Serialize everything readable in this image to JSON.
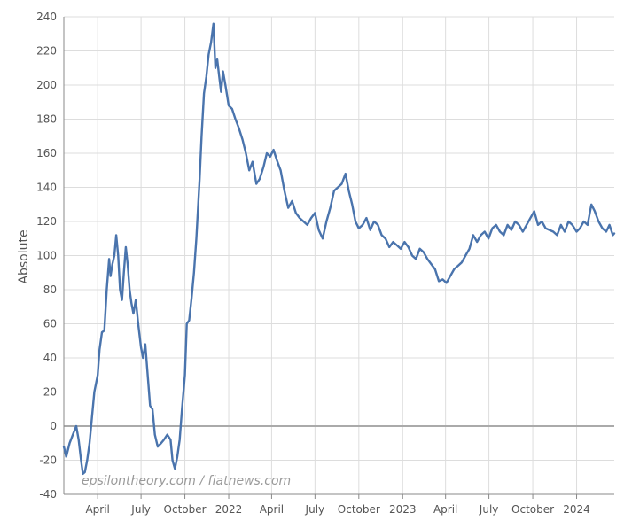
{
  "chart_data": {
    "type": "line",
    "ylabel": "Absolute",
    "ylim": [
      -40,
      240
    ],
    "yticks": [
      -40,
      -20,
      0,
      20,
      40,
      60,
      80,
      100,
      120,
      140,
      160,
      180,
      200,
      220,
      240
    ],
    "x_range_months": [
      "2021-01-20",
      "2024-03-20"
    ],
    "x_tick_labels": [
      "April",
      "July",
      "October",
      "2022",
      "April",
      "July",
      "October",
      "2023",
      "April",
      "July",
      "October",
      "2024"
    ],
    "x_tick_dates": [
      "2021-04-01",
      "2021-07-01",
      "2021-10-01",
      "2022-01-01",
      "2022-04-01",
      "2022-07-01",
      "2022-10-01",
      "2023-01-01",
      "2023-04-01",
      "2023-07-01",
      "2023-10-01",
      "2024-01-01"
    ],
    "grid": true,
    "zero_line": true,
    "series": [
      {
        "color": "#4a74ad",
        "points": [
          [
            "2021-01-20",
            -12
          ],
          [
            "2021-01-25",
            -18
          ],
          [
            "2021-02-01",
            -10
          ],
          [
            "2021-02-08",
            -5
          ],
          [
            "2021-02-15",
            0
          ],
          [
            "2021-02-20",
            -8
          ],
          [
            "2021-02-25",
            -20
          ],
          [
            "2021-03-01",
            -28
          ],
          [
            "2021-03-05",
            -27
          ],
          [
            "2021-03-10",
            -20
          ],
          [
            "2021-03-15",
            -10
          ],
          [
            "2021-03-20",
            5
          ],
          [
            "2021-03-25",
            20
          ],
          [
            "2021-04-01",
            30
          ],
          [
            "2021-04-05",
            45
          ],
          [
            "2021-04-10",
            55
          ],
          [
            "2021-04-15",
            56
          ],
          [
            "2021-04-20",
            80
          ],
          [
            "2021-04-25",
            98
          ],
          [
            "2021-04-28",
            88
          ],
          [
            "2021-05-02",
            95
          ],
          [
            "2021-05-06",
            100
          ],
          [
            "2021-05-10",
            112
          ],
          [
            "2021-05-14",
            100
          ],
          [
            "2021-05-18",
            80
          ],
          [
            "2021-05-22",
            74
          ],
          [
            "2021-05-26",
            90
          ],
          [
            "2021-05-30",
            105
          ],
          [
            "2021-06-03",
            95
          ],
          [
            "2021-06-07",
            80
          ],
          [
            "2021-06-11",
            72
          ],
          [
            "2021-06-15",
            66
          ],
          [
            "2021-06-20",
            74
          ],
          [
            "2021-06-25",
            60
          ],
          [
            "2021-07-01",
            46
          ],
          [
            "2021-07-05",
            40
          ],
          [
            "2021-07-10",
            48
          ],
          [
            "2021-07-15",
            30
          ],
          [
            "2021-07-20",
            12
          ],
          [
            "2021-07-25",
            10
          ],
          [
            "2021-07-30",
            -5
          ],
          [
            "2021-08-05",
            -12
          ],
          [
            "2021-08-12",
            -10
          ],
          [
            "2021-08-18",
            -8
          ],
          [
            "2021-08-25",
            -5
          ],
          [
            "2021-09-01",
            -8
          ],
          [
            "2021-09-05",
            -20
          ],
          [
            "2021-09-10",
            -25
          ],
          [
            "2021-09-15",
            -18
          ],
          [
            "2021-09-20",
            -8
          ],
          [
            "2021-09-25",
            10
          ],
          [
            "2021-10-01",
            30
          ],
          [
            "2021-10-05",
            60
          ],
          [
            "2021-10-10",
            62
          ],
          [
            "2021-10-15",
            75
          ],
          [
            "2021-10-20",
            90
          ],
          [
            "2021-10-25",
            110
          ],
          [
            "2021-11-01",
            145
          ],
          [
            "2021-11-05",
            170
          ],
          [
            "2021-11-10",
            195
          ],
          [
            "2021-11-15",
            205
          ],
          [
            "2021-11-20",
            218
          ],
          [
            "2021-11-25",
            225
          ],
          [
            "2021-11-30",
            236
          ],
          [
            "2021-12-04",
            210
          ],
          [
            "2021-12-08",
            215
          ],
          [
            "2021-12-12",
            205
          ],
          [
            "2021-12-16",
            196
          ],
          [
            "2021-12-20",
            208
          ],
          [
            "2021-12-25",
            200
          ],
          [
            "2022-01-01",
            188
          ],
          [
            "2022-01-08",
            186
          ],
          [
            "2022-01-15",
            180
          ],
          [
            "2022-01-22",
            175
          ],
          [
            "2022-01-30",
            168
          ],
          [
            "2022-02-06",
            160
          ],
          [
            "2022-02-13",
            150
          ],
          [
            "2022-02-20",
            155
          ],
          [
            "2022-02-28",
            142
          ],
          [
            "2022-03-07",
            145
          ],
          [
            "2022-03-15",
            152
          ],
          [
            "2022-03-22",
            160
          ],
          [
            "2022-03-29",
            158
          ],
          [
            "2022-04-05",
            162
          ],
          [
            "2022-04-12",
            156
          ],
          [
            "2022-04-20",
            150
          ],
          [
            "2022-04-28",
            138
          ],
          [
            "2022-05-06",
            128
          ],
          [
            "2022-05-14",
            132
          ],
          [
            "2022-05-22",
            125
          ],
          [
            "2022-05-30",
            122
          ],
          [
            "2022-06-07",
            120
          ],
          [
            "2022-06-15",
            118
          ],
          [
            "2022-06-23",
            122
          ],
          [
            "2022-07-01",
            125
          ],
          [
            "2022-07-09",
            115
          ],
          [
            "2022-07-17",
            110
          ],
          [
            "2022-07-25",
            120
          ],
          [
            "2022-08-02",
            128
          ],
          [
            "2022-08-10",
            138
          ],
          [
            "2022-08-18",
            140
          ],
          [
            "2022-08-26",
            142
          ],
          [
            "2022-09-03",
            148
          ],
          [
            "2022-09-10",
            138
          ],
          [
            "2022-09-17",
            130
          ],
          [
            "2022-09-24",
            120
          ],
          [
            "2022-10-01",
            116
          ],
          [
            "2022-10-09",
            118
          ],
          [
            "2022-10-17",
            122
          ],
          [
            "2022-10-25",
            115
          ],
          [
            "2022-11-02",
            120
          ],
          [
            "2022-11-10",
            118
          ],
          [
            "2022-11-18",
            112
          ],
          [
            "2022-11-26",
            110
          ],
          [
            "2022-12-04",
            105
          ],
          [
            "2022-12-12",
            108
          ],
          [
            "2022-12-20",
            106
          ],
          [
            "2022-12-28",
            104
          ],
          [
            "2023-01-05",
            108
          ],
          [
            "2023-01-13",
            105
          ],
          [
            "2023-01-21",
            100
          ],
          [
            "2023-01-29",
            98
          ],
          [
            "2023-02-06",
            104
          ],
          [
            "2023-02-14",
            102
          ],
          [
            "2023-02-22",
            98
          ],
          [
            "2023-03-02",
            95
          ],
          [
            "2023-03-10",
            92
          ],
          [
            "2023-03-18",
            85
          ],
          [
            "2023-03-26",
            86
          ],
          [
            "2023-04-03",
            84
          ],
          [
            "2023-04-11",
            88
          ],
          [
            "2023-04-19",
            92
          ],
          [
            "2023-04-27",
            94
          ],
          [
            "2023-05-05",
            96
          ],
          [
            "2023-05-13",
            100
          ],
          [
            "2023-05-21",
            104
          ],
          [
            "2023-05-29",
            112
          ],
          [
            "2023-06-06",
            108
          ],
          [
            "2023-06-14",
            112
          ],
          [
            "2023-06-22",
            114
          ],
          [
            "2023-06-30",
            110
          ],
          [
            "2023-07-08",
            116
          ],
          [
            "2023-07-16",
            118
          ],
          [
            "2023-07-24",
            114
          ],
          [
            "2023-08-01",
            112
          ],
          [
            "2023-08-09",
            118
          ],
          [
            "2023-08-17",
            115
          ],
          [
            "2023-08-25",
            120
          ],
          [
            "2023-09-02",
            118
          ],
          [
            "2023-09-10",
            114
          ],
          [
            "2023-09-18",
            118
          ],
          [
            "2023-09-26",
            122
          ],
          [
            "2023-10-04",
            126
          ],
          [
            "2023-10-12",
            118
          ],
          [
            "2023-10-20",
            120
          ],
          [
            "2023-10-28",
            116
          ],
          [
            "2023-11-05",
            115
          ],
          [
            "2023-11-13",
            114
          ],
          [
            "2023-11-21",
            112
          ],
          [
            "2023-11-29",
            118
          ],
          [
            "2023-12-07",
            114
          ],
          [
            "2023-12-15",
            120
          ],
          [
            "2023-12-23",
            118
          ],
          [
            "2024-01-01",
            114
          ],
          [
            "2024-01-08",
            116
          ],
          [
            "2024-01-16",
            120
          ],
          [
            "2024-01-24",
            118
          ],
          [
            "2024-02-01",
            130
          ],
          [
            "2024-02-08",
            126
          ],
          [
            "2024-02-16",
            120
          ],
          [
            "2024-02-24",
            116
          ],
          [
            "2024-03-03",
            114
          ],
          [
            "2024-03-10",
            118
          ],
          [
            "2024-03-17",
            112
          ],
          [
            "2024-03-20",
            113
          ]
        ]
      }
    ]
  },
  "watermark": "epsilontheory.com / fiatnews.com"
}
